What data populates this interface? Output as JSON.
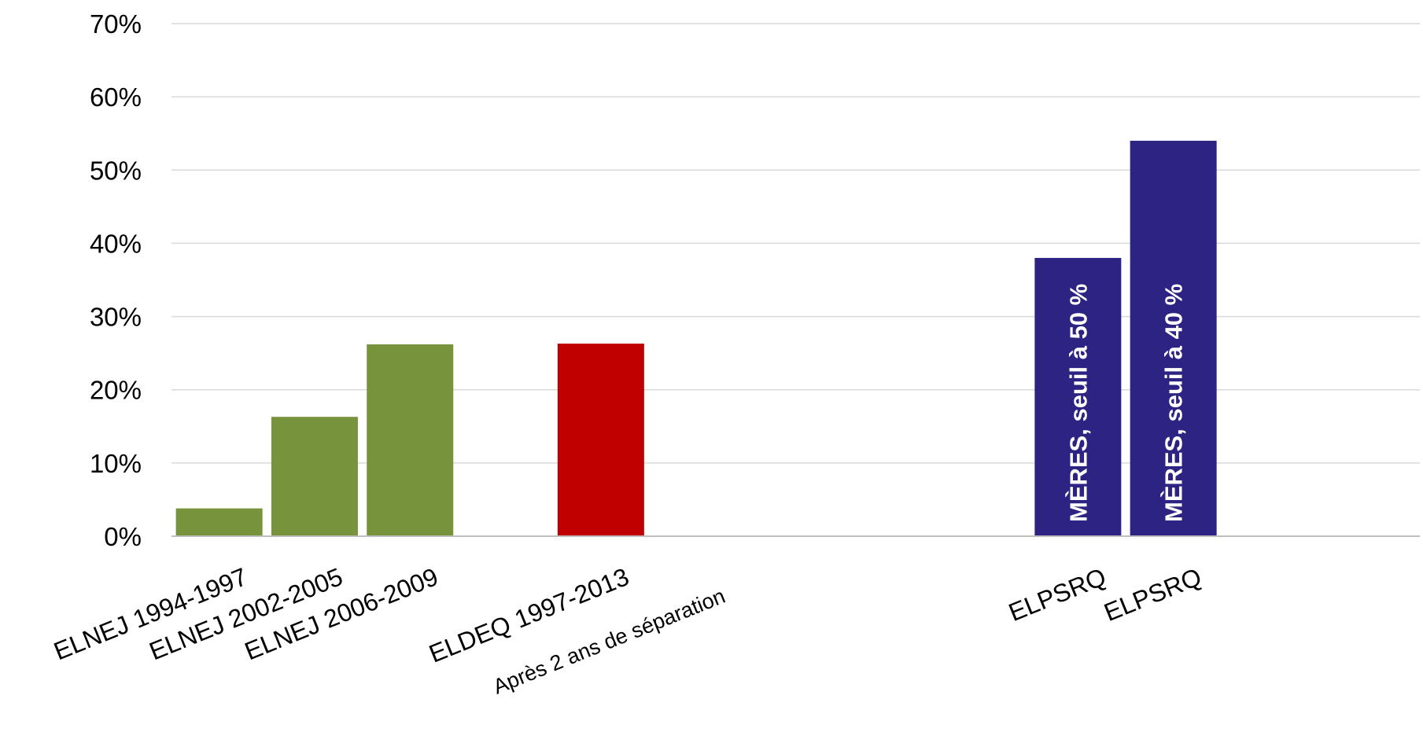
{
  "chart_data": {
    "type": "bar",
    "ylim": [
      0,
      0.7
    ],
    "y_ticks": [
      {
        "value": 0.0,
        "label": "0%"
      },
      {
        "value": 0.1,
        "label": "10%"
      },
      {
        "value": 0.2,
        "label": "20%"
      },
      {
        "value": 0.3,
        "label": "30%"
      },
      {
        "value": 0.4,
        "label": "40%"
      },
      {
        "value": 0.5,
        "label": "50%"
      },
      {
        "value": 0.6,
        "label": "60%"
      },
      {
        "value": 0.7,
        "label": "70%"
      }
    ],
    "grid": true,
    "legend": "none",
    "categories": [
      {
        "label": "ELNEJ 1994-1997",
        "sublabel": "",
        "value": 0.038,
        "color": "#77933c",
        "bar_label": ""
      },
      {
        "label": "ELNEJ 2002-2005",
        "sublabel": "",
        "value": 0.163,
        "color": "#77933c",
        "bar_label": ""
      },
      {
        "label": "ELNEJ 2006-2009",
        "sublabel": "",
        "value": 0.262,
        "color": "#77933c",
        "bar_label": ""
      },
      {
        "label": "",
        "sublabel": "",
        "value": null,
        "color": "",
        "bar_label": ""
      },
      {
        "label": "ELDEQ 1997-2013",
        "sublabel": "Après 2 ans de séparation",
        "value": 0.263,
        "color": "#c00000",
        "bar_label": ""
      },
      {
        "label": "",
        "sublabel": "",
        "value": null,
        "color": "",
        "bar_label": ""
      },
      {
        "label": "",
        "sublabel": "",
        "value": null,
        "color": "",
        "bar_label": ""
      },
      {
        "label": "",
        "sublabel": "",
        "value": null,
        "color": "",
        "bar_label": ""
      },
      {
        "label": "",
        "sublabel": "",
        "value": null,
        "color": "",
        "bar_label": ""
      },
      {
        "label": "ELPSRQ",
        "sublabel": "",
        "value": 0.38,
        "color": "#2c2382",
        "bar_label": "MÈRES, seuil à  50 %"
      },
      {
        "label": "ELPSRQ",
        "sublabel": "",
        "value": 0.54,
        "color": "#2c2382",
        "bar_label": "MÈRES, seuil à  40 %"
      },
      {
        "label": "",
        "sublabel": "",
        "value": null,
        "color": "",
        "bar_label": ""
      },
      {
        "label": "",
        "sublabel": "",
        "value": null,
        "color": "",
        "bar_label": ""
      }
    ]
  }
}
